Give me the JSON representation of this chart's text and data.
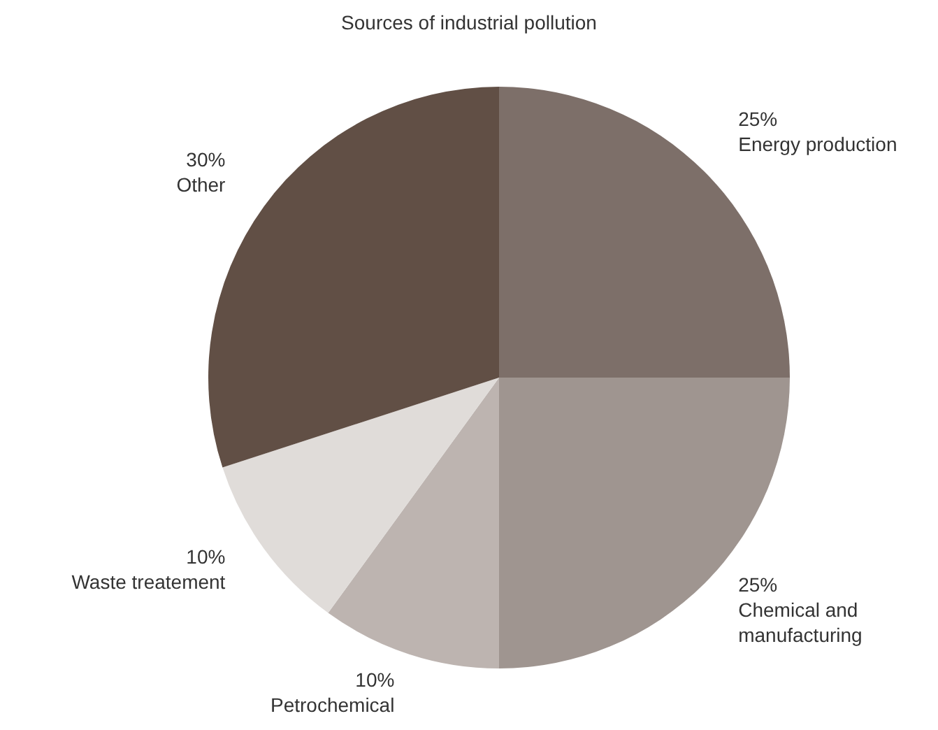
{
  "chart_data": {
    "type": "pie",
    "title": "Sources of industrial pollution",
    "categories": [
      "Energy production",
      "Chemical and manufacturing",
      "Petrochemical",
      "Waste treatement",
      "Other"
    ],
    "values": [
      25,
      25,
      10,
      10,
      30
    ],
    "colors": [
      "#7d6f69",
      "#9f9590",
      "#bdb4b0",
      "#e0dcd9",
      "#614f45"
    ],
    "value_labels": [
      "25%",
      "25%",
      "10%",
      "10%",
      "30%"
    ]
  }
}
